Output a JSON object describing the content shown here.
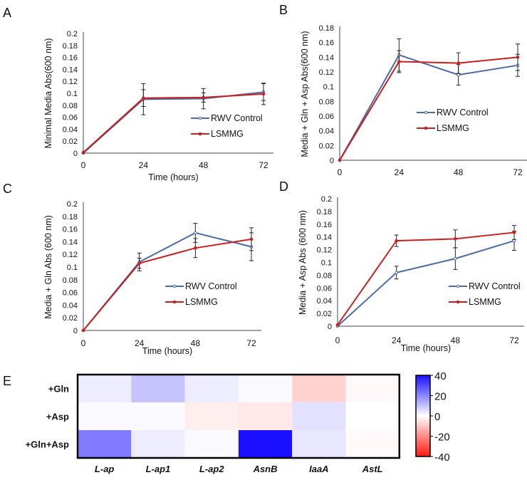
{
  "chart_data": [
    {
      "panel": "A",
      "type": "line",
      "xlabel": "Time (hours)",
      "ylabel": "Minimal Media Abs(600 nm)",
      "x": [
        0,
        24,
        48,
        72
      ],
      "ylim": [
        0,
        0.2
      ],
      "yticks": [
        "0",
        "0.02",
        "0.04",
        "0.06",
        "0.08",
        "0.1",
        "0.12",
        "0.14",
        "0.16",
        "0.18",
        "0.2"
      ],
      "xticks": [
        "0",
        "24",
        "48",
        "72"
      ],
      "legend_position": "center-right",
      "series": [
        {
          "name": "RWV Control",
          "color": "#4a6aa8",
          "values": [
            0,
            0.09,
            0.091,
            0.102
          ],
          "errors": [
            0,
            0.026,
            0.017,
            0.014
          ]
        },
        {
          "name": "LSMMG",
          "color": "#c8201e",
          "values": [
            0.001,
            0.092,
            0.093,
            0.099
          ],
          "errors": [
            0,
            0.014,
            0.008,
            0.018
          ]
        }
      ]
    },
    {
      "panel": "B",
      "type": "line",
      "xlabel": "",
      "ylabel": "Media + Gln + Asp Abs(600 nm)",
      "x": [
        0,
        24,
        48,
        72
      ],
      "ylim": [
        0,
        0.18
      ],
      "yticks": [
        "0",
        "0.02",
        "0.04",
        "0.06",
        "0.08",
        "0.1",
        "0.12",
        "0.14",
        "0.16",
        "0.18"
      ],
      "xticks": [
        "0",
        "24",
        "48",
        "72"
      ],
      "legend_position": "center-right",
      "series": [
        {
          "name": "RWV Control",
          "color": "#4a6aa8",
          "values": [
            0,
            0.143,
            0.116,
            0.129
          ],
          "errors": [
            0,
            0.022,
            0.014,
            0.015
          ]
        },
        {
          "name": "LSMMG",
          "color": "#c8201e",
          "values": [
            0,
            0.134,
            0.132,
            0.14
          ],
          "errors": [
            0,
            0.015,
            0.014,
            0.018
          ]
        }
      ]
    },
    {
      "panel": "C",
      "type": "line",
      "xlabel": "Time (hours)",
      "ylabel": "Media + Gln Abs (600 nm)",
      "x": [
        0,
        24,
        48,
        72
      ],
      "ylim": [
        0,
        0.2
      ],
      "yticks": [
        "0",
        "0.02",
        "0.04",
        "0.06",
        "0.08",
        "0.1",
        "0.12",
        "0.14",
        "0.16",
        "0.18",
        "0.2"
      ],
      "xticks": [
        "0",
        "24",
        "48",
        "72"
      ],
      "legend_position": "center-right",
      "series": [
        {
          "name": "RWV Control",
          "color": "#4a6aa8",
          "values": [
            0,
            0.108,
            0.154,
            0.132
          ],
          "errors": [
            0,
            0.014,
            0.015,
            0.022
          ]
        },
        {
          "name": "LSMMG",
          "color": "#c8201e",
          "values": [
            0,
            0.106,
            0.13,
            0.144
          ],
          "errors": [
            0,
            0.008,
            0.015,
            0.018
          ]
        }
      ]
    },
    {
      "panel": "D",
      "type": "line",
      "xlabel": "Time (hours)",
      "ylabel": "Media + Asp Abs (600 nm)",
      "x": [
        0,
        24,
        48,
        72
      ],
      "ylim": [
        0,
        0.2
      ],
      "yticks": [
        "0",
        "0.02",
        "0.04",
        "0.06",
        "0.08",
        "0.1",
        "0.12",
        "0.14",
        "0.16",
        "0.18",
        "0.2"
      ],
      "xticks": [
        "0",
        "24",
        "48",
        "72"
      ],
      "legend_position": "lower-right",
      "series": [
        {
          "name": "RWV Control",
          "color": "#4a6aa8",
          "values": [
            0,
            0.084,
            0.106,
            0.134
          ],
          "errors": [
            0,
            0.01,
            0.017,
            0.015
          ]
        },
        {
          "name": "LSMMG",
          "color": "#c8201e",
          "values": [
            0.002,
            0.134,
            0.137,
            0.147
          ],
          "errors": [
            0,
            0.009,
            0.014,
            0.011
          ]
        }
      ]
    },
    {
      "panel": "E",
      "type": "heatmap",
      "rows": [
        "+Gln",
        "+Asp",
        "+Gln+Asp"
      ],
      "columns": [
        "L-ap",
        "L-ap1",
        "L-ap2",
        "AsnB",
        "IaaA",
        "AstL"
      ],
      "values": [
        [
          3,
          10,
          3,
          1,
          -8,
          -1
        ],
        [
          1,
          1,
          -3,
          -4,
          5,
          0
        ],
        [
          22,
          3,
          1,
          40,
          4,
          -1
        ]
      ],
      "range": [
        -40,
        40
      ],
      "colorbar_ticks": [
        "40",
        "20",
        "0",
        "-20",
        "-40"
      ],
      "colors": {
        "high": "#1a10ff",
        "mid": "#ffffff",
        "low": "#ff1a10"
      }
    }
  ]
}
